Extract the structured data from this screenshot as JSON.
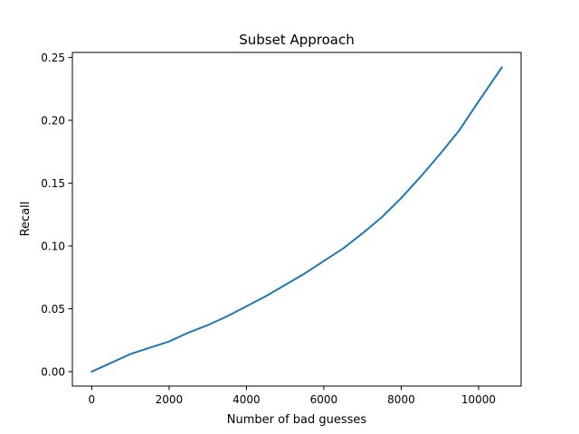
{
  "chart_data": {
    "type": "line",
    "title": "Subset Approach",
    "xlabel": "Number of bad guesses",
    "ylabel": "Recall",
    "xlim": [
      -500,
      11100
    ],
    "ylim": [
      -0.0115,
      0.254
    ],
    "xticks": [
      0,
      2000,
      4000,
      6000,
      8000,
      10000
    ],
    "xtick_labels": [
      "0",
      "2000",
      "4000",
      "6000",
      "8000",
      "10000"
    ],
    "yticks": [
      0.0,
      0.05,
      0.1,
      0.15,
      0.2,
      0.25
    ],
    "ytick_labels": [
      "0.00",
      "0.05",
      "0.10",
      "0.15",
      "0.20",
      "0.25"
    ],
    "grid": false,
    "series": [
      {
        "name": "Recall",
        "color": "#1f77b4",
        "x": [
          0,
          500,
          1000,
          1500,
          2000,
          2500,
          3000,
          3500,
          4000,
          4500,
          5000,
          5500,
          6000,
          6500,
          7000,
          7500,
          8000,
          8500,
          9000,
          9500,
          10000,
          10600
        ],
        "y": [
          0.0,
          0.007,
          0.014,
          0.019,
          0.024,
          0.031,
          0.037,
          0.044,
          0.052,
          0.06,
          0.069,
          0.078,
          0.088,
          0.098,
          0.11,
          0.123,
          0.138,
          0.155,
          0.173,
          0.192,
          0.215,
          0.242
        ]
      }
    ]
  }
}
